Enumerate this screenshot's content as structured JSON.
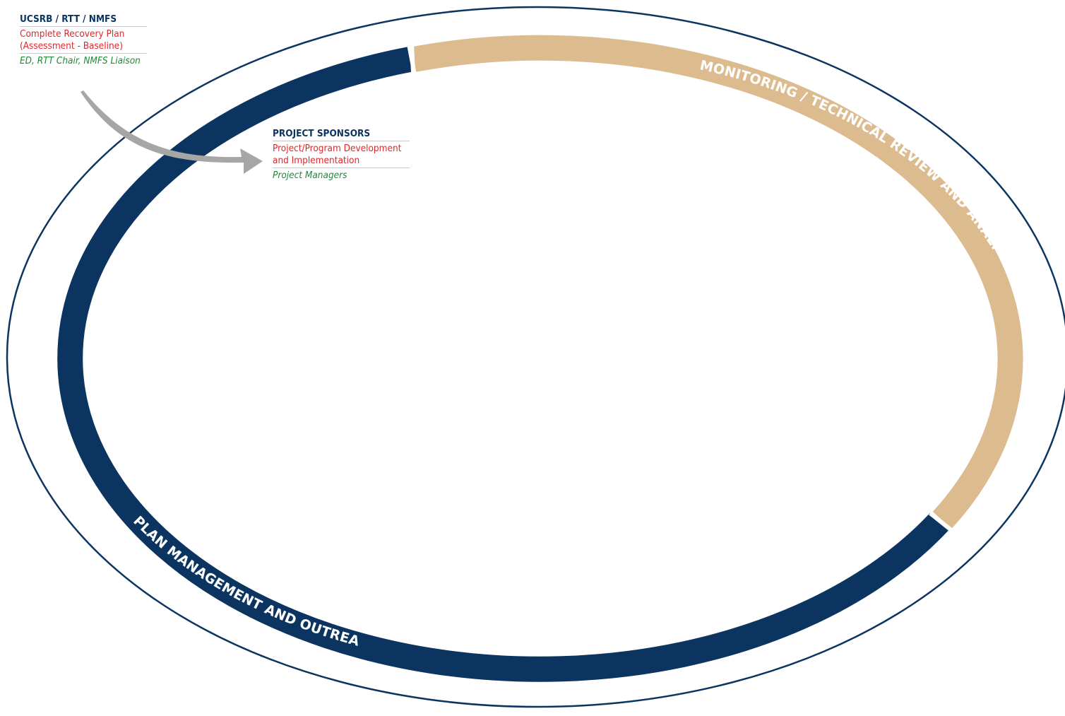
{
  "cycle": {
    "segments": [
      {
        "label": "MONITORING / TECHNICAL REVIEW AND ANALYSIS",
        "color": "#dcbb8f"
      },
      {
        "label": "PLAN MANAGEMENT AND OUTREACH",
        "color": "#0b3560"
      }
    ],
    "outer_ring_color": "#0b3560",
    "arrow_color": "#a6a6a6"
  },
  "boxes": {
    "top": {
      "title": "UCSRB / RTT / NMFS",
      "activity": [
        "Complete Recovery Plan",
        "(Assessment - Baseline)"
      ],
      "who": "ED, RTT Chair, NMFS Liaison"
    },
    "mid": {
      "title": "PROJECT SPONSORS",
      "activity": [
        "Project/Program Development",
        "and Implementation"
      ],
      "who": "Project Managers"
    }
  }
}
